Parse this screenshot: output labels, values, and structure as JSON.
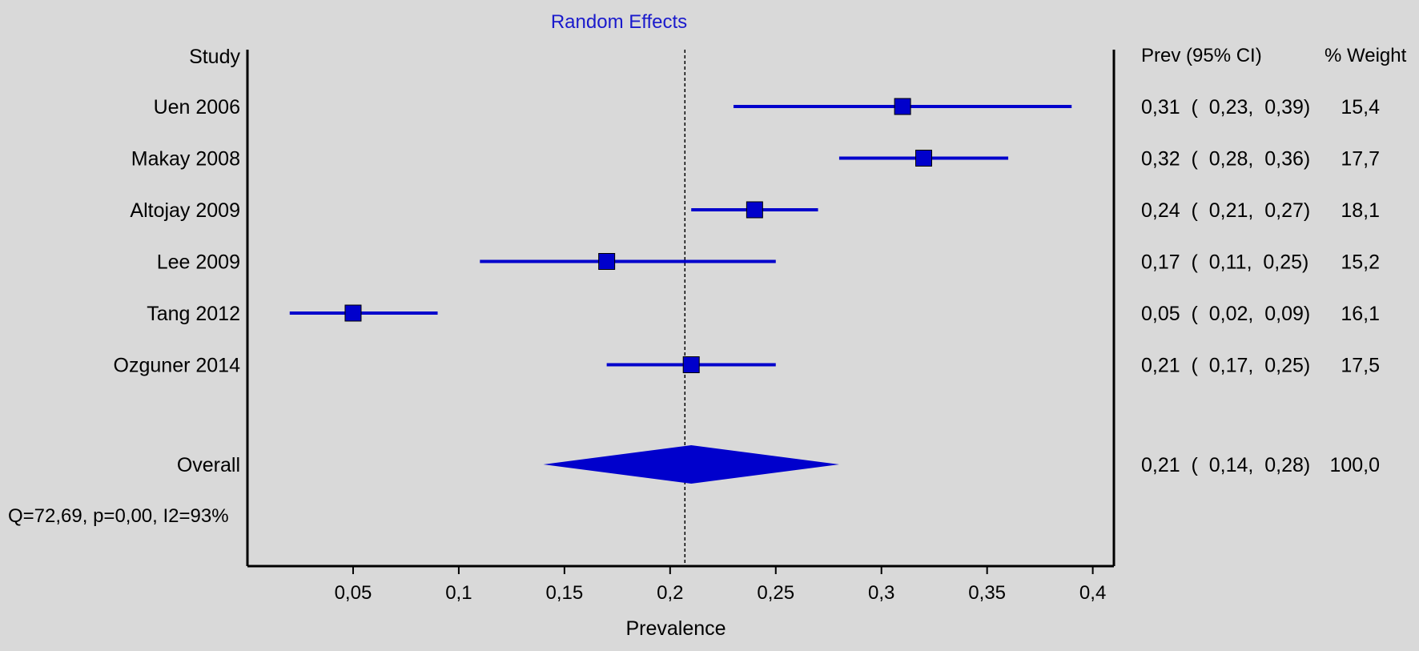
{
  "chart_data": {
    "type": "forest",
    "title": "Random Effects",
    "xlabel": "Prevalence",
    "xlim": [
      0.0,
      0.41
    ],
    "x_ticks": [
      0.05,
      0.1,
      0.15,
      0.2,
      0.25,
      0.3,
      0.35,
      0.4
    ],
    "x_tick_labels": [
      "0,05",
      "0,1",
      "0,15",
      "0,2",
      "0,25",
      "0,3",
      "0,35",
      "0,4"
    ],
    "reference_line": 0.207,
    "header": {
      "study": "Study",
      "ci": "Prev (95% CI)",
      "weight": "% Weight"
    },
    "studies": [
      {
        "name": "Uen 2006",
        "estimate": 0.31,
        "lower": 0.23,
        "upper": 0.39,
        "ci_text": "0,31  (  0,23,  0,39)",
        "weight": "15,4"
      },
      {
        "name": "Makay 2008",
        "estimate": 0.32,
        "lower": 0.28,
        "upper": 0.36,
        "ci_text": "0,32  (  0,28,  0,36)",
        "weight": "17,7"
      },
      {
        "name": "Altojay 2009",
        "estimate": 0.24,
        "lower": 0.21,
        "upper": 0.27,
        "ci_text": "0,24  (  0,21,  0,27)",
        "weight": "18,1"
      },
      {
        "name": "Lee 2009",
        "estimate": 0.17,
        "lower": 0.11,
        "upper": 0.25,
        "ci_text": "0,17  (  0,11,  0,25)",
        "weight": "15,2"
      },
      {
        "name": "Tang 2012",
        "estimate": 0.05,
        "lower": 0.02,
        "upper": 0.09,
        "ci_text": "0,05  (  0,02,  0,09)",
        "weight": "16,1"
      },
      {
        "name": "Ozguner 2014",
        "estimate": 0.21,
        "lower": 0.17,
        "upper": 0.25,
        "ci_text": "0,21  (  0,17,  0,25)",
        "weight": "17,5"
      }
    ],
    "overall": {
      "name": "Overall",
      "estimate": 0.21,
      "lower": 0.14,
      "upper": 0.28,
      "ci_text": "0,21  (  0,14,  0,28)",
      "weight": "100,0"
    },
    "heterogeneity": "Q=72,69, p=0,00, I2=93%",
    "colors": {
      "marker": "#0000cc",
      "title": "#1a1acc",
      "text": "#000000",
      "background": "#d9d9d9"
    }
  }
}
